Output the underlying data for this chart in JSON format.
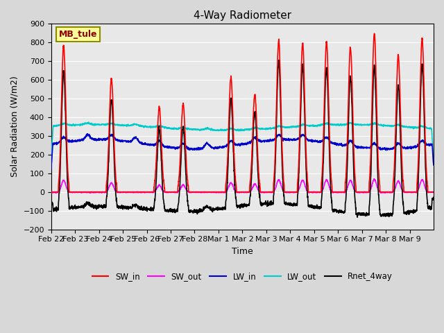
{
  "title": "4-Way Radiometer",
  "xlabel": "Time",
  "ylabel": "Solar Radiation (W/m2)",
  "ylim": [
    -200,
    900
  ],
  "yticks": [
    -200,
    -100,
    0,
    100,
    200,
    300,
    400,
    500,
    600,
    700,
    800,
    900
  ],
  "site_label": "MB_tule",
  "fig_bg_color": "#d8d8d8",
  "ax_bg_color": "#e8e8e8",
  "grid_color": "#ffffff",
  "day_labels": [
    "Feb 22",
    "Feb 23",
    "Feb 24",
    "Feb 25",
    "Feb 26",
    "Feb 27",
    "Feb 28",
    "Mar 1",
    "Mar 2",
    "Mar 3",
    "Mar 4",
    "Mar 5",
    "Mar 6",
    "Mar 7",
    "Mar 8",
    "Mar 9"
  ],
  "sw_in_peaks": [
    780,
    0,
    605,
    0,
    450,
    470,
    0,
    610,
    520,
    810,
    795,
    800,
    775,
    845,
    730,
    820
  ],
  "lines": {
    "SW_in": {
      "color": "#ff0000",
      "lw": 1.2
    },
    "SW_out": {
      "color": "#ff00ff",
      "lw": 1.2
    },
    "LW_in": {
      "color": "#0000cc",
      "lw": 1.2
    },
    "LW_out": {
      "color": "#00cccc",
      "lw": 1.2
    },
    "Rnet_4way": {
      "color": "#000000",
      "lw": 1.2
    }
  },
  "n_days": 16,
  "pts_per_day": 144
}
